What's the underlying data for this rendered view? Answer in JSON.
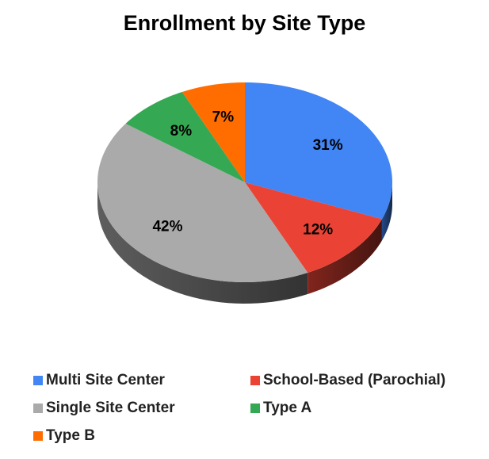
{
  "chart_data": {
    "type": "pie",
    "title": "Enrollment by Site Type",
    "slices": [
      {
        "label": "Multi Site Center",
        "value": 31,
        "value_label": "31%",
        "color": "#4285f4"
      },
      {
        "label": "School-Based (Parochial)",
        "value": 12,
        "value_label": "12%",
        "color": "#ea4335"
      },
      {
        "label": "Single Site Center",
        "value": 42,
        "value_label": "42%",
        "color": "#aaaaaa"
      },
      {
        "label": "Type A",
        "value": 8,
        "value_label": "8%",
        "color": "#34a853"
      },
      {
        "label": "Type B",
        "value": 7,
        "value_label": "7%",
        "color": "#ff6d01"
      }
    ],
    "style": "3d",
    "legend_position": "bottom"
  }
}
